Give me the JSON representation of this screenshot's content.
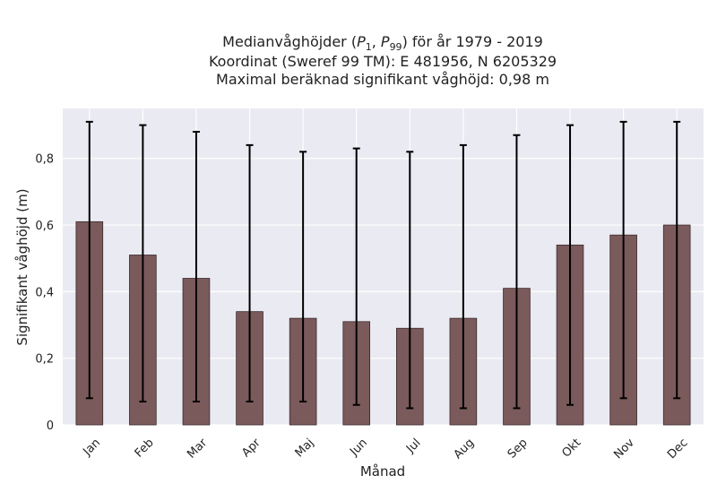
{
  "chart_data": {
    "type": "bar",
    "title_lines": [
      "Medianvåghöjder (P1, P99) för år 1979 - 2019",
      "Koordinat (Sweref 99 TM): E 481956, N 6205329",
      "Maximal beräknad signifikant våghöjd: 0,98 m"
    ],
    "xlabel": "Månad",
    "ylabel": "Signifikant våghöjd (m)",
    "categories": [
      "Jan",
      "Feb",
      "Mar",
      "Apr",
      "Maj",
      "Jun",
      "Jul",
      "Aug",
      "Sep",
      "Okt",
      "Nov",
      "Dec"
    ],
    "values": [
      0.61,
      0.51,
      0.44,
      0.34,
      0.32,
      0.31,
      0.29,
      0.32,
      0.41,
      0.54,
      0.57,
      0.6
    ],
    "error_low": [
      0.08,
      0.07,
      0.07,
      0.07,
      0.07,
      0.06,
      0.05,
      0.05,
      0.05,
      0.06,
      0.08,
      0.08
    ],
    "error_high": [
      0.91,
      0.9,
      0.88,
      0.84,
      0.82,
      0.83,
      0.82,
      0.84,
      0.87,
      0.9,
      0.91,
      0.91
    ],
    "ylim": [
      0,
      0.95
    ],
    "yticks": [
      0,
      0.2,
      0.4,
      0.6,
      0.8
    ],
    "ytick_labels": [
      "0",
      "0,2",
      "0,4",
      "0,6",
      "0,8"
    ],
    "grid": true,
    "bar_color": "#7b5a5c",
    "bar_edge_color": "#3a2a2b",
    "plot_background": "#eaeaf2",
    "error_bar_color": "#000000"
  }
}
